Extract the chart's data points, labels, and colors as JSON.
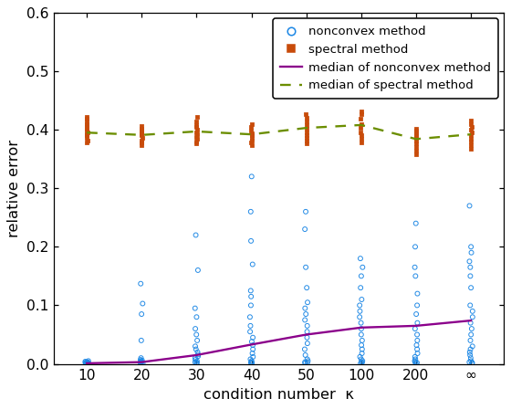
{
  "x_labels": [
    "10",
    "20",
    "30",
    "40",
    "50",
    "100",
    "200",
    "∞"
  ],
  "x_positions": [
    0,
    1,
    2,
    3,
    4,
    5,
    6,
    7
  ],
  "xlabel": "condition number  κ",
  "ylabel": "relative error",
  "ylim": [
    0,
    0.6
  ],
  "yticks": [
    0.0,
    0.1,
    0.2,
    0.3,
    0.4,
    0.5,
    0.6
  ],
  "nonconvex_median": [
    0.001,
    0.003,
    0.015,
    0.033,
    0.05,
    0.062,
    0.065,
    0.074
  ],
  "spectral_median": [
    0.395,
    0.391,
    0.397,
    0.392,
    0.403,
    0.408,
    0.384,
    0.392
  ],
  "nonconvex_color": "#1E88E5",
  "spectral_color": "#C84B0A",
  "nonconvex_line_color": "#8B008B",
  "spectral_line_color": "#6B8E00",
  "background_color": "#ffffff",
  "legend_labels": [
    "nonconvex method",
    "spectral method",
    "median of nonconvex method",
    "median of spectral method"
  ],
  "nonconvex_scatter_data": [
    [
      0.001,
      0.001,
      0.001,
      0.001,
      0.001,
      0.002,
      0.002,
      0.002,
      0.003,
      0.003,
      0.004,
      0.005
    ],
    [
      0.001,
      0.001,
      0.002,
      0.002,
      0.003,
      0.003,
      0.004,
      0.005,
      0.006,
      0.007,
      0.01,
      0.04,
      0.085,
      0.103,
      0.137
    ],
    [
      0.001,
      0.002,
      0.003,
      0.005,
      0.007,
      0.01,
      0.013,
      0.016,
      0.02,
      0.025,
      0.03,
      0.04,
      0.05,
      0.06,
      0.08,
      0.095,
      0.16,
      0.22
    ],
    [
      0.001,
      0.002,
      0.003,
      0.005,
      0.008,
      0.012,
      0.018,
      0.025,
      0.032,
      0.038,
      0.045,
      0.055,
      0.065,
      0.08,
      0.1,
      0.115,
      0.125,
      0.17,
      0.21,
      0.26,
      0.32
    ],
    [
      0.001,
      0.002,
      0.003,
      0.005,
      0.008,
      0.015,
      0.025,
      0.035,
      0.045,
      0.055,
      0.065,
      0.075,
      0.085,
      0.095,
      0.105,
      0.13,
      0.165,
      0.23,
      0.26
    ],
    [
      0.001,
      0.002,
      0.003,
      0.005,
      0.008,
      0.012,
      0.018,
      0.025,
      0.032,
      0.04,
      0.05,
      0.06,
      0.07,
      0.08,
      0.09,
      0.1,
      0.11,
      0.13,
      0.15,
      0.165,
      0.18
    ],
    [
      0.001,
      0.002,
      0.003,
      0.005,
      0.008,
      0.012,
      0.018,
      0.025,
      0.032,
      0.04,
      0.05,
      0.06,
      0.07,
      0.085,
      0.1,
      0.12,
      0.15,
      0.165,
      0.2,
      0.24
    ],
    [
      0.001,
      0.002,
      0.003,
      0.005,
      0.01,
      0.015,
      0.02,
      0.025,
      0.03,
      0.04,
      0.05,
      0.06,
      0.07,
      0.08,
      0.09,
      0.1,
      0.13,
      0.15,
      0.165,
      0.175,
      0.19,
      0.2,
      0.27
    ]
  ],
  "spectral_scatter_data": [
    [
      0.378,
      0.382,
      0.386,
      0.39,
      0.393,
      0.396,
      0.399,
      0.402,
      0.406,
      0.41,
      0.414,
      0.418,
      0.422
    ],
    [
      0.374,
      0.378,
      0.382,
      0.386,
      0.39,
      0.393,
      0.396,
      0.399,
      0.402,
      0.406
    ],
    [
      0.376,
      0.38,
      0.384,
      0.388,
      0.392,
      0.396,
      0.4,
      0.404,
      0.408,
      0.414,
      0.422
    ],
    [
      0.374,
      0.378,
      0.382,
      0.386,
      0.39,
      0.394,
      0.398,
      0.404,
      0.41
    ],
    [
      0.376,
      0.381,
      0.386,
      0.391,
      0.396,
      0.402,
      0.408,
      0.414,
      0.42,
      0.426
    ],
    [
      0.378,
      0.384,
      0.39,
      0.396,
      0.403,
      0.41,
      0.418,
      0.426,
      0.432
    ],
    [
      0.358,
      0.364,
      0.37,
      0.376,
      0.382,
      0.386,
      0.39,
      0.394,
      0.398,
      0.402
    ],
    [
      0.368,
      0.374,
      0.38,
      0.385,
      0.39,
      0.395,
      0.4,
      0.405,
      0.41,
      0.415
    ]
  ]
}
